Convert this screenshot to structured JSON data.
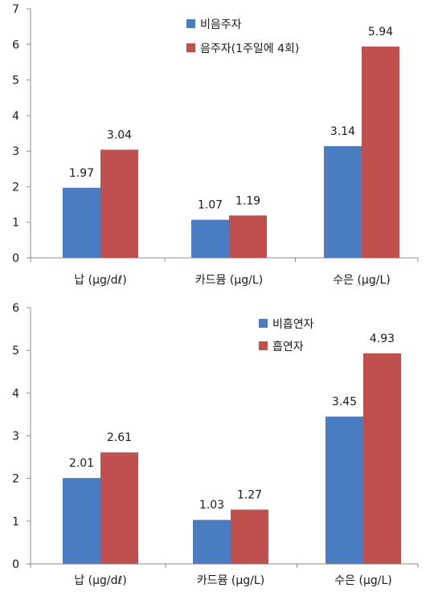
{
  "colors": {
    "blue": "#4a7cc2",
    "red": "#c0504d",
    "axis": "#8c8c8c"
  },
  "chart_data": [
    {
      "type": "bar",
      "categories": [
        "납 (μg/dℓ)",
        "카드뮴 (μg/L)",
        "수은 (μg/L)"
      ],
      "ylim": [
        0,
        7
      ],
      "yticks": [
        "0",
        "1",
        "2",
        "3",
        "4",
        "5",
        "6",
        "7"
      ],
      "grid": false,
      "legend_position": "top-center",
      "series": [
        {
          "name": "비음주자",
          "values": [
            1.97,
            1.07,
            3.14
          ],
          "labels": [
            "1.97",
            "1.07",
            "3.14"
          ],
          "color": "#4a7cc2"
        },
        {
          "name": "음주자(1주일에 4회)",
          "values": [
            3.04,
            1.19,
            5.94
          ],
          "labels": [
            "3.04",
            "1.19",
            "5.94"
          ],
          "color": "#c0504d"
        }
      ]
    },
    {
      "type": "bar",
      "categories": [
        "납 (μg/dℓ)",
        "카드뮴 (μg/L)",
        "수은 (μg/L)"
      ],
      "ylim": [
        0,
        6
      ],
      "yticks": [
        "0",
        "1",
        "2",
        "3",
        "4",
        "5",
        "6"
      ],
      "grid": false,
      "legend_position": "top-center",
      "series": [
        {
          "name": "비흡연자",
          "values": [
            2.01,
            1.03,
            3.45
          ],
          "labels": [
            "2.01",
            "1.03",
            "3.45"
          ],
          "color": "#4a7cc2"
        },
        {
          "name": "흡연자",
          "values": [
            2.61,
            1.27,
            4.93
          ],
          "labels": [
            "2.61",
            "1.27",
            "4.93"
          ],
          "color": "#c0504d"
        }
      ]
    }
  ]
}
